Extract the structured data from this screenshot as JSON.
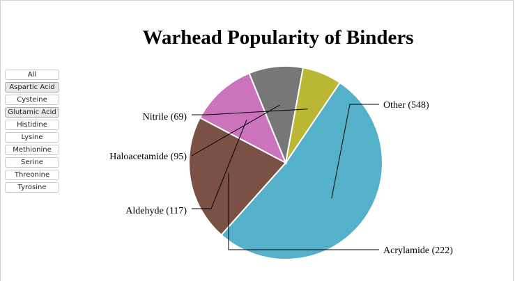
{
  "filters": [
    {
      "label": "All",
      "selected": false
    },
    {
      "label": "Aspartic Acid",
      "selected": true
    },
    {
      "label": "Cysteine",
      "selected": false
    },
    {
      "label": "Glutamic Acid",
      "selected": true
    },
    {
      "label": "Histidine",
      "selected": false
    },
    {
      "label": "Lysine",
      "selected": false
    },
    {
      "label": "Methionine",
      "selected": false
    },
    {
      "label": "Serine",
      "selected": false
    },
    {
      "label": "Threonine",
      "selected": false
    },
    {
      "label": "Tyrosine",
      "selected": false
    }
  ],
  "chart_data": {
    "type": "pie",
    "title": "Warhead Popularity of Binders",
    "slices": [
      {
        "label": "Other (548)",
        "name": "Other",
        "value": 548,
        "color": "#55b1c9"
      },
      {
        "label": "Acrylamide (222)",
        "name": "Acrylamide",
        "value": 222,
        "color": "#7b5145"
      },
      {
        "label": "Aldehyde (117)",
        "name": "Aldehyde",
        "value": 117,
        "color": "#cc73bd"
      },
      {
        "label": "Haloacetamide (95)",
        "name": "Haloacetamide",
        "value": 95,
        "color": "#777777"
      },
      {
        "label": "Nitrile (69)",
        "name": "Nitrile",
        "value": 69,
        "color": "#b9b733"
      }
    ]
  }
}
